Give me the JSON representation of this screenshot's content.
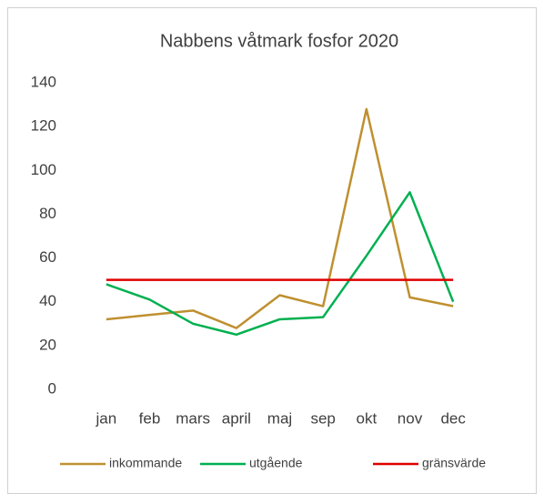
{
  "chart_data": {
    "type": "line",
    "title": "Nabbens våtmark fosfor 2020",
    "categories": [
      "jan",
      "feb",
      "mars",
      "april",
      "maj",
      "sep",
      "okt",
      "nov",
      "dec"
    ],
    "series": [
      {
        "name": "inkommande",
        "color": "#bf9030",
        "values": [
          32,
          34,
          36,
          28,
          43,
          38,
          128,
          42,
          38
        ]
      },
      {
        "name": "utgående",
        "color": "#00b050",
        "values": [
          48,
          41,
          30,
          25,
          32,
          33,
          61,
          90,
          40
        ]
      },
      {
        "name": "gränsvärde",
        "color": "#e00000",
        "values": [
          50,
          50,
          50,
          50,
          50,
          50,
          50,
          50,
          50
        ]
      }
    ],
    "ylim": [
      0,
      140
    ],
    "yticks": [
      0,
      20,
      40,
      60,
      80,
      100,
      120,
      140
    ],
    "grid": false,
    "legend": "bottom"
  }
}
